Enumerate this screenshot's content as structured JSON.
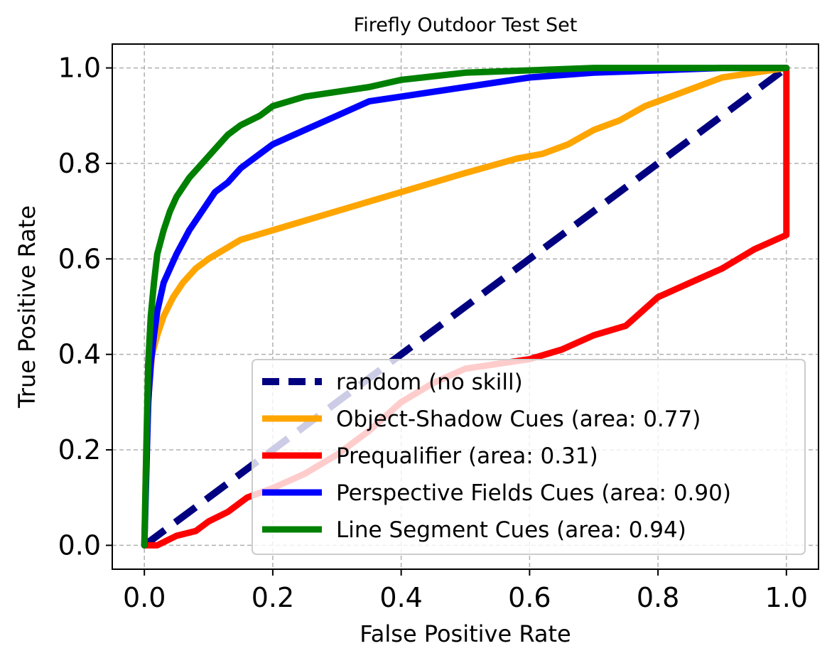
{
  "chart_data": {
    "type": "line",
    "title": "Firefly Outdoor Test Set",
    "xlabel": "False Positive Rate",
    "ylabel": "True Positive Rate",
    "xlim": [
      -0.05,
      1.05
    ],
    "ylim": [
      -0.05,
      1.05
    ],
    "xticks": [
      0.0,
      0.2,
      0.4,
      0.6,
      0.8,
      1.0
    ],
    "yticks": [
      0.0,
      0.2,
      0.4,
      0.6,
      0.8,
      1.0
    ],
    "tick_labels": [
      "0.0",
      "0.2",
      "0.4",
      "0.6",
      "0.8",
      "1.0"
    ],
    "grid": true,
    "legend_position": "lower-right",
    "series": [
      {
        "name": "random (no skill)",
        "color": "#000080",
        "dashed": true,
        "x": [
          0.0,
          1.0
        ],
        "y": [
          0.0,
          1.0
        ]
      },
      {
        "name": "Object-Shadow Cues (area: 0.77)",
        "color": "#FFA500",
        "dashed": false,
        "x": [
          0.0,
          0.003,
          0.007,
          0.012,
          0.02,
          0.03,
          0.045,
          0.06,
          0.08,
          0.1,
          0.125,
          0.15,
          0.2,
          0.3,
          0.4,
          0.5,
          0.58,
          0.62,
          0.66,
          0.7,
          0.74,
          0.78,
          0.82,
          0.86,
          0.9,
          0.95,
          1.0
        ],
        "y": [
          0.0,
          0.2,
          0.32,
          0.4,
          0.44,
          0.48,
          0.52,
          0.55,
          0.58,
          0.6,
          0.62,
          0.64,
          0.66,
          0.7,
          0.74,
          0.78,
          0.81,
          0.82,
          0.84,
          0.87,
          0.89,
          0.92,
          0.94,
          0.96,
          0.98,
          0.99,
          1.0
        ]
      },
      {
        "name": "Prequalifier (area: 0.31)",
        "color": "#FF0000",
        "dashed": false,
        "x": [
          0.0,
          0.02,
          0.05,
          0.08,
          0.1,
          0.13,
          0.16,
          0.2,
          0.25,
          0.3,
          0.35,
          0.4,
          0.45,
          0.5,
          0.55,
          0.6,
          0.65,
          0.7,
          0.75,
          0.8,
          0.85,
          0.9,
          0.95,
          1.0,
          1.0
        ],
        "y": [
          0.0,
          0.0,
          0.02,
          0.03,
          0.05,
          0.07,
          0.1,
          0.12,
          0.15,
          0.19,
          0.24,
          0.3,
          0.34,
          0.37,
          0.38,
          0.39,
          0.41,
          0.44,
          0.46,
          0.52,
          0.55,
          0.58,
          0.62,
          0.65,
          1.0
        ]
      },
      {
        "name": "Perspective Fields Cues (area: 0.90)",
        "color": "#0000FF",
        "dashed": false,
        "x": [
          0.0,
          0.003,
          0.006,
          0.01,
          0.015,
          0.02,
          0.03,
          0.04,
          0.05,
          0.07,
          0.09,
          0.11,
          0.13,
          0.15,
          0.18,
          0.2,
          0.25,
          0.3,
          0.35,
          0.4,
          0.5,
          0.6,
          0.7,
          0.8,
          0.9,
          1.0
        ],
        "y": [
          0.0,
          0.15,
          0.3,
          0.38,
          0.44,
          0.49,
          0.55,
          0.58,
          0.61,
          0.66,
          0.7,
          0.74,
          0.76,
          0.79,
          0.82,
          0.84,
          0.87,
          0.9,
          0.93,
          0.94,
          0.96,
          0.98,
          0.99,
          0.995,
          1.0,
          1.0
        ]
      },
      {
        "name": "Line Segment Cues (area: 0.94)",
        "color": "#008000",
        "dashed": false,
        "x": [
          0.0,
          0.003,
          0.006,
          0.01,
          0.015,
          0.02,
          0.03,
          0.04,
          0.05,
          0.07,
          0.09,
          0.11,
          0.13,
          0.15,
          0.18,
          0.2,
          0.25,
          0.3,
          0.35,
          0.4,
          0.5,
          0.6,
          0.7,
          0.8,
          0.9,
          1.0
        ],
        "y": [
          0.0,
          0.2,
          0.38,
          0.48,
          0.55,
          0.61,
          0.66,
          0.7,
          0.73,
          0.77,
          0.8,
          0.83,
          0.86,
          0.88,
          0.9,
          0.92,
          0.94,
          0.95,
          0.96,
          0.975,
          0.99,
          0.995,
          1.0,
          1.0,
          1.0,
          1.0
        ]
      }
    ]
  }
}
